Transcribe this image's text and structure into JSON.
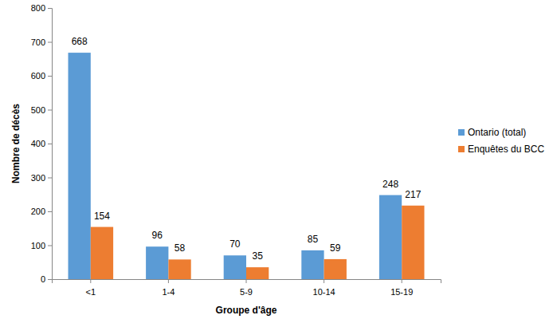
{
  "chart_data": {
    "type": "bar",
    "x_label": "Groupe d'âge",
    "y_label": "Nombre de décès",
    "categories": [
      "<1",
      "1-4",
      "5-9",
      "10-14",
      "15-19"
    ],
    "series": [
      {
        "name": "Ontario (total)",
        "color": "#5b9bd5",
        "values": [
          668,
          96,
          70,
          85,
          248
        ]
      },
      {
        "name": "Enquêtes du BCC",
        "color": "#ed7d31",
        "values": [
          154,
          58,
          35,
          59,
          217
        ]
      }
    ],
    "ylim": [
      0,
      800
    ],
    "yticks": [
      0,
      100,
      200,
      300,
      400,
      500,
      600,
      700,
      800
    ],
    "grid": false,
    "legend": "right",
    "data_labels": true
  }
}
